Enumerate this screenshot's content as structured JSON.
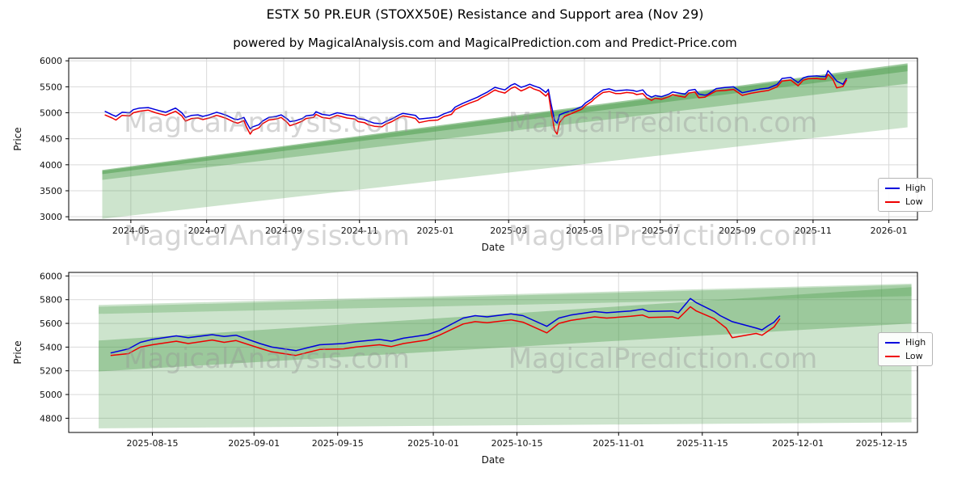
{
  "title": "ESTX 50 PR.EUR (STOXX50E) Resistance and Support area (Nov 29)",
  "subtitle": "powered by MagicalAnalysis.com and MagicalPrediction.com and Predict-Price.com",
  "watermarks": {
    "left": "MagicalAnalysis.com",
    "right": "MagicalPrediction.com"
  },
  "colors": {
    "high": "#0000dd",
    "low": "#ee0000",
    "band": "#4c9e4c",
    "grid": "#d9d9d9",
    "axis": "#000000",
    "text": "#111111"
  },
  "chart_data": [
    {
      "type": "line",
      "name": "full-history",
      "xlabel": "Date",
      "ylabel": "Price",
      "legend": [
        "High",
        "Low"
      ],
      "x_domain": [
        "2024-03-12",
        "2026-01-24"
      ],
      "y_domain": [
        2940,
        6050
      ],
      "x_ticks": [
        "2024-05",
        "2024-07",
        "2024-09",
        "2024-11",
        "2025-01",
        "2025-03",
        "2025-05",
        "2025-07",
        "2025-09",
        "2025-11",
        "2026-01"
      ],
      "y_ticks": [
        3000,
        3500,
        4000,
        4500,
        5000,
        5500,
        6000
      ],
      "bands": [
        {
          "opacity": 0.28,
          "points": [
            [
              "2024-04-08",
              3900
            ],
            [
              "2026-01-16",
              5950
            ],
            [
              "2026-01-16",
              4720
            ],
            [
              "2024-04-08",
              2960
            ]
          ]
        },
        {
          "opacity": 0.38,
          "points": [
            [
              "2024-04-08",
              3900
            ],
            [
              "2026-01-16",
              5950
            ],
            [
              "2026-01-16",
              5560
            ],
            [
              "2024-04-08",
              3710
            ]
          ]
        },
        {
          "opacity": 0.5,
          "points": [
            [
              "2024-04-08",
              3880
            ],
            [
              "2026-01-16",
              5920
            ],
            [
              "2026-01-16",
              5800
            ],
            [
              "2024-04-08",
              3820
            ]
          ]
        }
      ],
      "series_names": [
        "High",
        "Low"
      ],
      "rows": [
        [
          "2024-04-10",
          5030,
          4960
        ],
        [
          "2024-04-16",
          4960,
          4900
        ],
        [
          "2024-04-19",
          4930,
          4860
        ],
        [
          "2024-04-24",
          5010,
          4950
        ],
        [
          "2024-04-30",
          5000,
          4940
        ],
        [
          "2024-05-03",
          5060,
          5000
        ],
        [
          "2024-05-08",
          5090,
          5030
        ],
        [
          "2024-05-15",
          5100,
          5050
        ],
        [
          "2024-05-21",
          5060,
          5000
        ],
        [
          "2024-05-24",
          5040,
          4980
        ],
        [
          "2024-05-29",
          5010,
          4950
        ],
        [
          "2024-06-04",
          5070,
          5010
        ],
        [
          "2024-06-06",
          5090,
          5030
        ],
        [
          "2024-06-11",
          5000,
          4940
        ],
        [
          "2024-06-14",
          4910,
          4840
        ],
        [
          "2024-06-19",
          4950,
          4890
        ],
        [
          "2024-06-24",
          4960,
          4900
        ],
        [
          "2024-06-28",
          4930,
          4870
        ],
        [
          "2024-07-03",
          4960,
          4900
        ],
        [
          "2024-07-09",
          5010,
          4950
        ],
        [
          "2024-07-12",
          4990,
          4930
        ],
        [
          "2024-07-17",
          4950,
          4890
        ],
        [
          "2024-07-23",
          4880,
          4820
        ],
        [
          "2024-07-26",
          4870,
          4800
        ],
        [
          "2024-07-31",
          4910,
          4850
        ],
        [
          "2024-08-02",
          4820,
          4730
        ],
        [
          "2024-08-05",
          4690,
          4590
        ],
        [
          "2024-08-07",
          4730,
          4660
        ],
        [
          "2024-08-12",
          4770,
          4710
        ],
        [
          "2024-08-15",
          4840,
          4790
        ],
        [
          "2024-08-20",
          4910,
          4860
        ],
        [
          "2024-08-26",
          4930,
          4880
        ],
        [
          "2024-08-30",
          4960,
          4910
        ],
        [
          "2024-09-04",
          4880,
          4810
        ],
        [
          "2024-09-06",
          4830,
          4750
        ],
        [
          "2024-09-11",
          4850,
          4790
        ],
        [
          "2024-09-16",
          4890,
          4840
        ],
        [
          "2024-09-19",
          4940,
          4890
        ],
        [
          "2024-09-25",
          4960,
          4910
        ],
        [
          "2024-09-27",
          5020,
          4970
        ],
        [
          "2024-10-02",
          4970,
          4910
        ],
        [
          "2024-10-08",
          4950,
          4890
        ],
        [
          "2024-10-14",
          5000,
          4950
        ],
        [
          "2024-10-17",
          4990,
          4930
        ],
        [
          "2024-10-22",
          4960,
          4900
        ],
        [
          "2024-10-28",
          4940,
          4880
        ],
        [
          "2024-10-31",
          4890,
          4830
        ],
        [
          "2024-11-05",
          4870,
          4810
        ],
        [
          "2024-11-08",
          4840,
          4770
        ],
        [
          "2024-11-13",
          4800,
          4740
        ],
        [
          "2024-11-19",
          4790,
          4730
        ],
        [
          "2024-11-22",
          4830,
          4780
        ],
        [
          "2024-11-27",
          4880,
          4830
        ],
        [
          "2024-12-03",
          4960,
          4910
        ],
        [
          "2024-12-06",
          4990,
          4940
        ],
        [
          "2024-12-11",
          4970,
          4920
        ],
        [
          "2024-12-16",
          4950,
          4890
        ],
        [
          "2024-12-19",
          4880,
          4810
        ],
        [
          "2024-12-27",
          4900,
          4850
        ],
        [
          "2025-01-03",
          4920,
          4860
        ],
        [
          "2025-01-08",
          4980,
          4930
        ],
        [
          "2025-01-14",
          5030,
          4970
        ],
        [
          "2025-01-17",
          5110,
          5060
        ],
        [
          "2025-01-23",
          5180,
          5130
        ],
        [
          "2025-01-29",
          5240,
          5190
        ],
        [
          "2025-02-04",
          5300,
          5240
        ],
        [
          "2025-02-07",
          5340,
          5290
        ],
        [
          "2025-02-12",
          5400,
          5350
        ],
        [
          "2025-02-18",
          5490,
          5440
        ],
        [
          "2025-02-21",
          5470,
          5410
        ],
        [
          "2025-02-26",
          5440,
          5380
        ],
        [
          "2025-03-03",
          5530,
          5470
        ],
        [
          "2025-03-06",
          5560,
          5500
        ],
        [
          "2025-03-11",
          5490,
          5420
        ],
        [
          "2025-03-14",
          5510,
          5450
        ],
        [
          "2025-03-18",
          5550,
          5500
        ],
        [
          "2025-03-21",
          5520,
          5460
        ],
        [
          "2025-03-26",
          5480,
          5420
        ],
        [
          "2025-03-31",
          5390,
          5320
        ],
        [
          "2025-04-02",
          5450,
          5380
        ],
        [
          "2025-04-04",
          5190,
          5060
        ],
        [
          "2025-04-07",
          4850,
          4660
        ],
        [
          "2025-04-09",
          4800,
          4590
        ],
        [
          "2025-04-11",
          4960,
          4810
        ],
        [
          "2025-04-15",
          5000,
          4930
        ],
        [
          "2025-04-22",
          5050,
          5000
        ],
        [
          "2025-04-29",
          5120,
          5070
        ],
        [
          "2025-05-02",
          5190,
          5140
        ],
        [
          "2025-05-07",
          5270,
          5220
        ],
        [
          "2025-05-09",
          5320,
          5270
        ],
        [
          "2025-05-14",
          5410,
          5360
        ],
        [
          "2025-05-16",
          5440,
          5390
        ],
        [
          "2025-05-21",
          5460,
          5410
        ],
        [
          "2025-05-26",
          5420,
          5370
        ],
        [
          "2025-05-30",
          5430,
          5370
        ],
        [
          "2025-06-04",
          5440,
          5390
        ],
        [
          "2025-06-09",
          5430,
          5380
        ],
        [
          "2025-06-12",
          5410,
          5350
        ],
        [
          "2025-06-17",
          5440,
          5370
        ],
        [
          "2025-06-20",
          5350,
          5290
        ],
        [
          "2025-06-24",
          5300,
          5240
        ],
        [
          "2025-06-27",
          5330,
          5280
        ],
        [
          "2025-07-02",
          5310,
          5260
        ],
        [
          "2025-07-08",
          5360,
          5310
        ],
        [
          "2025-07-11",
          5400,
          5350
        ],
        [
          "2025-07-16",
          5380,
          5320
        ],
        [
          "2025-07-21",
          5360,
          5300
        ],
        [
          "2025-07-24",
          5430,
          5380
        ],
        [
          "2025-07-29",
          5450,
          5400
        ],
        [
          "2025-08-01",
          5360,
          5290
        ],
        [
          "2025-08-06",
          5340,
          5300
        ],
        [
          "2025-08-08",
          5350,
          5330
        ],
        [
          "2025-08-15",
          5465,
          5420
        ],
        [
          "2025-08-22",
          5485,
          5430
        ],
        [
          "2025-08-29",
          5500,
          5450
        ],
        [
          "2025-09-05",
          5385,
          5335
        ],
        [
          "2025-09-12",
          5420,
          5375
        ],
        [
          "2025-09-19",
          5455,
          5405
        ],
        [
          "2025-09-26",
          5475,
          5430
        ],
        [
          "2025-10-03",
          5545,
          5500
        ],
        [
          "2025-10-07",
          5660,
          5610
        ],
        [
          "2025-10-14",
          5680,
          5630
        ],
        [
          "2025-10-20",
          5580,
          5520
        ],
        [
          "2025-10-24",
          5670,
          5625
        ],
        [
          "2025-10-28",
          5700,
          5655
        ],
        [
          "2025-11-04",
          5710,
          5660
        ],
        [
          "2025-11-07",
          5700,
          5650
        ],
        [
          "2025-11-11",
          5695,
          5645
        ],
        [
          "2025-11-13",
          5810,
          5740
        ],
        [
          "2025-11-17",
          5700,
          5640
        ],
        [
          "2025-11-20",
          5610,
          5480
        ],
        [
          "2025-11-25",
          5550,
          5505
        ],
        [
          "2025-11-28",
          5665,
          5635
        ]
      ]
    },
    {
      "type": "line",
      "name": "recent-zoom",
      "xlabel": "Date",
      "ylabel": "Price",
      "legend": [
        "High",
        "Low"
      ],
      "x_domain": [
        "2025-08-01",
        "2025-12-21"
      ],
      "y_domain": [
        4680,
        6030
      ],
      "x_ticks": [
        "2025-08-15",
        "2025-09-01",
        "2025-09-15",
        "2025-10-01",
        "2025-10-15",
        "2025-11-01",
        "2025-11-15",
        "2025-12-01",
        "2025-12-15"
      ],
      "y_ticks": [
        4800,
        5000,
        5200,
        5400,
        5600,
        5800,
        6000
      ],
      "bands": [
        {
          "opacity": 0.28,
          "points": [
            [
              "2025-08-06",
              5755
            ],
            [
              "2025-12-20",
              5935
            ],
            [
              "2025-12-20",
              4765
            ],
            [
              "2025-08-06",
              4715
            ]
          ]
        },
        {
          "opacity": 0.38,
          "points": [
            [
              "2025-08-06",
              5455
            ],
            [
              "2025-12-20",
              5905
            ],
            [
              "2025-12-20",
              5600
            ],
            [
              "2025-08-06",
              5195
            ]
          ]
        },
        {
          "opacity": 0.3,
          "points": [
            [
              "2025-08-06",
              5740
            ],
            [
              "2025-12-20",
              5925
            ],
            [
              "2025-12-20",
              5830
            ],
            [
              "2025-08-06",
              5680
            ]
          ]
        }
      ],
      "series_names": [
        "High",
        "Low"
      ],
      "rows": [
        [
          "2025-08-08",
          5350,
          5330
        ],
        [
          "2025-08-11",
          5385,
          5345
        ],
        [
          "2025-08-13",
          5440,
          5400
        ],
        [
          "2025-08-15",
          5465,
          5420
        ],
        [
          "2025-08-19",
          5495,
          5450
        ],
        [
          "2025-08-21",
          5480,
          5430
        ],
        [
          "2025-08-25",
          5505,
          5460
        ],
        [
          "2025-08-27",
          5490,
          5440
        ],
        [
          "2025-08-29",
          5500,
          5455
        ],
        [
          "2025-09-02",
          5430,
          5390
        ],
        [
          "2025-09-04",
          5400,
          5360
        ],
        [
          "2025-09-08",
          5370,
          5330
        ],
        [
          "2025-09-10",
          5395,
          5355
        ],
        [
          "2025-09-12",
          5420,
          5380
        ],
        [
          "2025-09-16",
          5430,
          5385
        ],
        [
          "2025-09-18",
          5445,
          5400
        ],
        [
          "2025-09-22",
          5465,
          5420
        ],
        [
          "2025-09-24",
          5450,
          5405
        ],
        [
          "2025-09-26",
          5475,
          5430
        ],
        [
          "2025-09-30",
          5505,
          5460
        ],
        [
          "2025-10-02",
          5540,
          5500
        ],
        [
          "2025-10-06",
          5645,
          5595
        ],
        [
          "2025-10-08",
          5665,
          5615
        ],
        [
          "2025-10-10",
          5655,
          5605
        ],
        [
          "2025-10-14",
          5680,
          5630
        ],
        [
          "2025-10-16",
          5665,
          5610
        ],
        [
          "2025-10-20",
          5575,
          5520
        ],
        [
          "2025-10-22",
          5645,
          5600
        ],
        [
          "2025-10-24",
          5670,
          5625
        ],
        [
          "2025-10-28",
          5700,
          5655
        ],
        [
          "2025-10-30",
          5690,
          5645
        ],
        [
          "2025-11-03",
          5705,
          5660
        ],
        [
          "2025-11-05",
          5720,
          5670
        ],
        [
          "2025-11-06",
          5700,
          5650
        ],
        [
          "2025-11-10",
          5705,
          5655
        ],
        [
          "2025-11-11",
          5690,
          5640
        ],
        [
          "2025-11-12",
          5750,
          5690
        ],
        [
          "2025-11-13",
          5810,
          5740
        ],
        [
          "2025-11-14",
          5775,
          5705
        ],
        [
          "2025-11-17",
          5700,
          5640
        ],
        [
          "2025-11-18",
          5665,
          5600
        ],
        [
          "2025-11-19",
          5640,
          5560
        ],
        [
          "2025-11-20",
          5615,
          5480
        ],
        [
          "2025-11-24",
          5560,
          5515
        ],
        [
          "2025-11-25",
          5545,
          5500
        ],
        [
          "2025-11-26",
          5580,
          5535
        ],
        [
          "2025-11-27",
          5610,
          5570
        ],
        [
          "2025-11-28",
          5665,
          5640
        ]
      ]
    }
  ]
}
